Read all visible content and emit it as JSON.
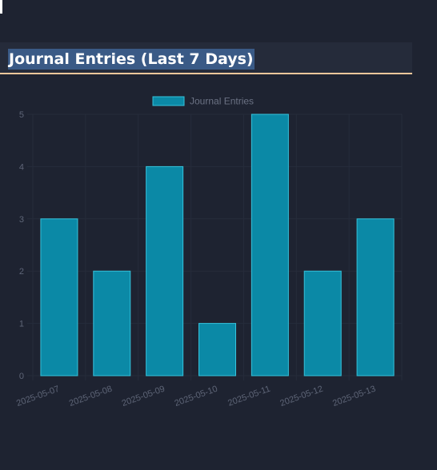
{
  "panel": {
    "title": "Journal Entries (Last 7 Days)"
  },
  "colors": {
    "bar_fill": "#0b89a6",
    "bar_border": "#36c3dc",
    "grid": "#262c3b",
    "tick_text": "#5e6577",
    "legend_text": "#6b7284",
    "header_underline": "#f2c79b"
  },
  "chart_data": {
    "type": "bar",
    "categories": [
      "2025-05-07",
      "2025-05-08",
      "2025-05-09",
      "2025-05-10",
      "2025-05-11",
      "2025-05-12",
      "2025-05-13"
    ],
    "series": [
      {
        "name": "Journal Entries",
        "values": [
          3,
          2,
          4,
          1,
          5,
          2,
          3
        ]
      }
    ],
    "title": "",
    "xlabel": "",
    "ylabel": "",
    "ylim": [
      0,
      5
    ],
    "yticks": [
      0,
      1,
      2,
      3,
      4,
      5
    ],
    "grid": true,
    "legend_position": "top"
  }
}
